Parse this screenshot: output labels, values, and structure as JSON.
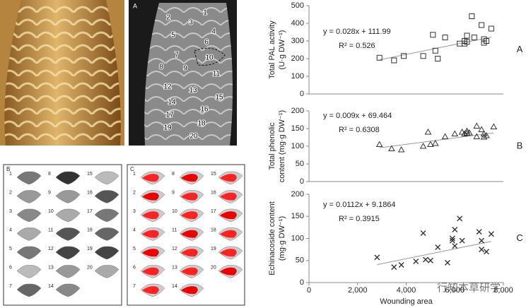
{
  "chart_data": [
    {
      "type": "scatter",
      "ylabel": [
        "Total PAL activity",
        "(U·g DW⁻¹)"
      ],
      "panel": "A",
      "marker": "square",
      "color": "#333333",
      "x": [
        2900,
        3500,
        3900,
        4700,
        5100,
        5200,
        5300,
        5600,
        6200,
        6400,
        6400,
        6500,
        6500,
        6700,
        6800,
        7100,
        7200,
        7200,
        7300,
        7500
      ],
      "values": [
        205,
        190,
        215,
        215,
        335,
        245,
        200,
        320,
        285,
        285,
        300,
        330,
        295,
        440,
        320,
        390,
        310,
        290,
        300,
        370
      ],
      "trendline": {
        "label": "y = 0.028x + 111.99",
        "slope": 0.028,
        "intercept": 111.99,
        "r2_label": "R² = 0.526"
      },
      "xlim": [
        0,
        8000
      ],
      "ylim": [
        0,
        500
      ],
      "yticks": [
        0,
        100,
        200,
        300,
        400,
        500
      ]
    },
    {
      "type": "scatter",
      "ylabel": [
        "Total phenolic",
        "content (mg·g DW⁻¹)"
      ],
      "panel": "B",
      "marker": "triangle",
      "color": "#333333",
      "x": [
        2900,
        3400,
        3800,
        4700,
        4900,
        5000,
        5200,
        5600,
        6000,
        6300,
        6400,
        6500,
        6500,
        6600,
        6900,
        6900,
        7100,
        7200,
        7200,
        7300,
        7600
      ],
      "values": [
        105,
        93,
        90,
        100,
        140,
        105,
        108,
        127,
        135,
        140,
        135,
        143,
        137,
        138,
        157,
        127,
        147,
        126,
        135,
        130,
        155
      ],
      "trendline": {
        "label": "y = 0.009x + 69.464",
        "slope": 0.009,
        "intercept": 69.464,
        "r2_label": "R² = 0.6308"
      },
      "xlim": [
        0,
        8000
      ],
      "ylim": [
        0,
        200
      ],
      "yticks": [
        0,
        50,
        100,
        150,
        200
      ]
    },
    {
      "type": "scatter",
      "ylabel": [
        "Echinacoside content",
        "(mg·g DW⁻¹)"
      ],
      "panel": "C",
      "marker": "cross",
      "color": "#333333",
      "xlabel": "Wounding area",
      "x": [
        2800,
        3500,
        3800,
        4400,
        4700,
        4800,
        5000,
        5300,
        5700,
        5900,
        5900,
        6000,
        6000,
        6200,
        6300,
        7000,
        7100,
        7100,
        7300,
        7500
      ],
      "values": [
        57,
        35,
        40,
        48,
        112,
        52,
        50,
        80,
        45,
        100,
        95,
        83,
        120,
        145,
        95,
        115,
        75,
        95,
        70,
        110
      ],
      "trendline": {
        "label": "y = 0.0112x + 9.1864",
        "slope": 0.0112,
        "intercept": 9.1864,
        "r2_label": "R² = 0.3915"
      },
      "xlim": [
        0,
        8000
      ],
      "ylim": [
        0,
        200
      ],
      "yticks": [
        0,
        50,
        100,
        150,
        200
      ],
      "xticks": [
        0,
        {
          "value": 2000,
          "label": "2,000"
        },
        {
          "value": 4000,
          "label": "4,000"
        },
        {
          "value": 6000,
          "label": "6,000"
        },
        {
          "value": 8000,
          "label": "8,000"
        }
      ]
    }
  ],
  "photo_a": {
    "label": "A",
    "numbers": [
      "1",
      "2",
      "3",
      "4",
      "5",
      "6",
      "7",
      "8",
      "9",
      "10",
      "11",
      "12",
      "13",
      "14",
      "15",
      "16",
      "17",
      "18",
      "19",
      "20"
    ]
  },
  "panel_b": {
    "label": "B",
    "numbers": [
      "1",
      "2",
      "3",
      "4",
      "5",
      "6",
      "7",
      "8",
      "9",
      "10",
      "11",
      "12",
      "13",
      "14",
      "15",
      "16",
      "17",
      "18",
      "19",
      "20"
    ]
  },
  "panel_c": {
    "label": "C",
    "numbers": [
      "1",
      "2",
      "3",
      "4",
      "5",
      "6",
      "7",
      "8",
      "9",
      "10",
      "11",
      "12",
      "13",
      "14",
      "15",
      "16",
      "17",
      "18",
      "19",
      "20"
    ]
  },
  "watermark": "行知本草研学"
}
